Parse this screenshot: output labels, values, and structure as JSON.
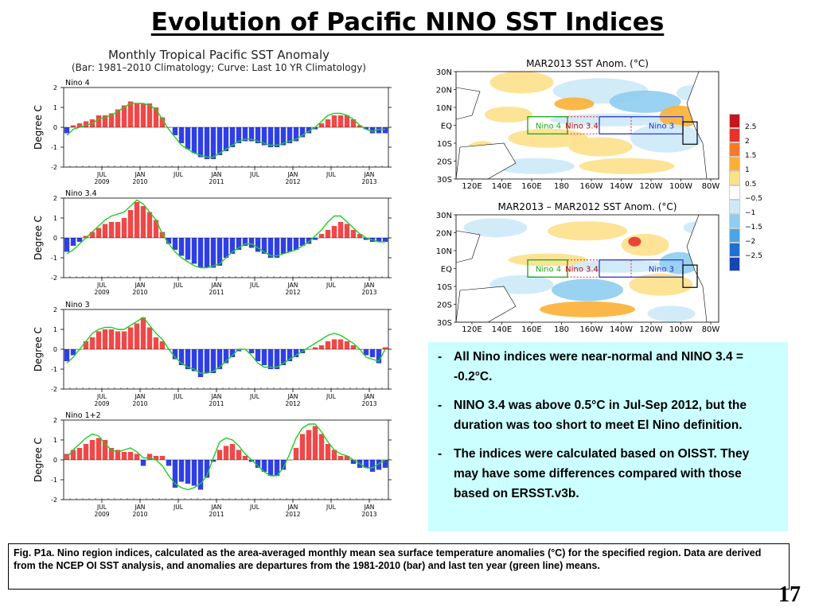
{
  "title": "Evolution of Pacific NINO SST Indices",
  "left_header": {
    "line1": "Monthly Tropical Pacific SST Anomaly",
    "line2": "(Bar: 1981–2010 Climatology; Curve: Last 10 YR Climatology)"
  },
  "colors": {
    "positive_bar": "#f04848",
    "negative_bar": "#2f3fe6",
    "curve": "#22cc22"
  },
  "chart_data": [
    {
      "type": "bar",
      "title": "Nino 4",
      "ylabel": "Degree C",
      "ylim": [
        -2,
        2
      ],
      "yticks": [
        2,
        1,
        0,
        -1,
        -2
      ],
      "xtick_labels": [
        [
          "JUL",
          "2009"
        ],
        [
          "JAN",
          "2010"
        ],
        [
          "JUL",
          ""
        ],
        [
          "JAN",
          "2011"
        ],
        [
          "JUL",
          ""
        ],
        [
          "JAN",
          "2012"
        ],
        [
          "JUL",
          ""
        ],
        [
          "JAN",
          "2013"
        ]
      ],
      "months_start": "2009-01",
      "bars": [
        -0.3,
        0.1,
        0.2,
        0.3,
        0.4,
        0.6,
        0.6,
        0.7,
        0.9,
        1.1,
        1.3,
        1.2,
        1.2,
        1.2,
        1.0,
        0.5,
        0.0,
        -0.4,
        -0.8,
        -1.1,
        -1.3,
        -1.5,
        -1.6,
        -1.6,
        -1.4,
        -1.2,
        -1.0,
        -0.8,
        -0.7,
        -0.7,
        -0.8,
        -0.9,
        -1.0,
        -1.0,
        -0.9,
        -0.8,
        -0.7,
        -0.5,
        -0.3,
        -0.1,
        0.2,
        0.4,
        0.6,
        0.6,
        0.6,
        0.4,
        0.1,
        -0.1,
        -0.3,
        -0.3,
        -0.3
      ],
      "curve": [
        -0.4,
        -0.1,
        0.0,
        0.1,
        0.2,
        0.4,
        0.5,
        0.6,
        0.8,
        1.0,
        1.2,
        1.2,
        1.2,
        1.1,
        0.9,
        0.4,
        -0.1,
        -0.5,
        -0.9,
        -1.1,
        -1.3,
        -1.4,
        -1.5,
        -1.5,
        -1.3,
        -1.1,
        -0.9,
        -0.7,
        -0.6,
        -0.6,
        -0.7,
        -0.8,
        -0.9,
        -0.9,
        -0.8,
        -0.7,
        -0.6,
        -0.4,
        -0.2,
        0.0,
        0.3,
        0.6,
        0.7,
        0.7,
        0.6,
        0.4,
        0.1,
        -0.1,
        -0.2,
        -0.1,
        -0.1
      ]
    },
    {
      "type": "bar",
      "title": "Nino 3.4",
      "ylabel": "Degree C",
      "ylim": [
        -2,
        2
      ],
      "yticks": [
        2,
        1,
        0,
        -1,
        -2
      ],
      "xtick_labels": [
        [
          "JUL",
          "2009"
        ],
        [
          "JAN",
          "2010"
        ],
        [
          "JUL",
          ""
        ],
        [
          "JAN",
          "2011"
        ],
        [
          "JUL",
          ""
        ],
        [
          "JAN",
          "2012"
        ],
        [
          "JUL",
          ""
        ],
        [
          "JAN",
          "2013"
        ]
      ],
      "months_start": "2009-01",
      "bars": [
        -0.7,
        -0.4,
        -0.2,
        0.1,
        0.3,
        0.5,
        0.7,
        0.8,
        0.8,
        1.0,
        1.4,
        1.8,
        1.6,
        1.3,
        0.9,
        0.3,
        -0.3,
        -0.6,
        -0.9,
        -1.1,
        -1.3,
        -1.5,
        -1.5,
        -1.5,
        -1.4,
        -1.0,
        -0.8,
        -0.6,
        -0.4,
        -0.5,
        -0.7,
        -0.8,
        -1.0,
        -1.0,
        -0.8,
        -0.7,
        -0.6,
        -0.4,
        -0.3,
        -0.1,
        0.2,
        0.4,
        0.6,
        0.8,
        0.7,
        0.4,
        0.2,
        -0.1,
        -0.2,
        -0.2,
        -0.2
      ],
      "curve": [
        -0.8,
        -0.6,
        -0.3,
        0.0,
        0.3,
        0.6,
        0.9,
        1.1,
        1.2,
        1.3,
        1.6,
        1.9,
        1.7,
        1.3,
        0.9,
        0.2,
        -0.3,
        -0.7,
        -1.0,
        -1.2,
        -1.4,
        -1.5,
        -1.5,
        -1.4,
        -1.3,
        -1.0,
        -0.7,
        -0.5,
        -0.3,
        -0.3,
        -0.5,
        -0.7,
        -0.9,
        -0.9,
        -0.8,
        -0.7,
        -0.6,
        -0.4,
        -0.2,
        0.1,
        0.4,
        0.8,
        1.1,
        1.1,
        0.8,
        0.5,
        0.2,
        0.0,
        -0.1,
        -0.2,
        -0.2
      ]
    },
    {
      "type": "bar",
      "title": "Nino 3",
      "ylabel": "Degree C",
      "ylim": [
        -2,
        2
      ],
      "yticks": [
        2,
        1,
        0,
        -1,
        -2
      ],
      "xtick_labels": [
        [
          "JUL",
          "2009"
        ],
        [
          "JAN",
          "2010"
        ],
        [
          "JUL",
          ""
        ],
        [
          "JAN",
          "2011"
        ],
        [
          "JUL",
          ""
        ],
        [
          "JAN",
          "2012"
        ],
        [
          "JUL",
          ""
        ],
        [
          "JAN",
          "2013"
        ]
      ],
      "months_start": "2009-01",
      "bars": [
        -0.6,
        -0.3,
        0.0,
        0.4,
        0.6,
        0.9,
        1.0,
        1.0,
        0.9,
        0.9,
        1.1,
        1.3,
        1.6,
        1.1,
        0.6,
        0.4,
        0.0,
        -0.5,
        -0.8,
        -1.0,
        -1.1,
        -1.4,
        -1.2,
        -1.2,
        -1.0,
        -0.7,
        -0.4,
        -0.1,
        0.0,
        -0.2,
        -0.6,
        -0.8,
        -1.0,
        -1.0,
        -0.8,
        -0.6,
        -0.4,
        -0.2,
        0.0,
        0.1,
        0.2,
        0.4,
        0.5,
        0.5,
        0.4,
        0.2,
        0.0,
        -0.3,
        -0.4,
        -0.7,
        0.1
      ],
      "curve": [
        -0.7,
        -0.4,
        0.0,
        0.4,
        0.8,
        1.0,
        1.1,
        1.1,
        1.0,
        1.0,
        1.2,
        1.4,
        1.6,
        1.2,
        0.8,
        0.5,
        0.0,
        -0.4,
        -0.7,
        -0.9,
        -1.0,
        -1.2,
        -1.2,
        -1.1,
        -0.9,
        -0.6,
        -0.3,
        0.0,
        0.0,
        -0.3,
        -0.7,
        -0.9,
        -0.9,
        -0.9,
        -0.7,
        -0.5,
        -0.3,
        -0.1,
        0.1,
        0.3,
        0.5,
        0.7,
        0.8,
        0.7,
        0.5,
        0.3,
        0.0,
        -0.4,
        -0.5,
        -0.6,
        0.0
      ]
    },
    {
      "type": "bar",
      "title": "Nino 1+2",
      "ylabel": "Degree C",
      "ylim": [
        -2,
        2
      ],
      "yticks": [
        2,
        1,
        0,
        -1,
        -2
      ],
      "xtick_labels": [
        [
          "JUL",
          "2009"
        ],
        [
          "JAN",
          "2010"
        ],
        [
          "JUL",
          ""
        ],
        [
          "JAN",
          "2011"
        ],
        [
          "JUL",
          ""
        ],
        [
          "JAN",
          "2012"
        ],
        [
          "JUL",
          ""
        ],
        [
          "JAN",
          "2013"
        ]
      ],
      "months_start": "2009-01",
      "bars": [
        0.3,
        0.5,
        0.6,
        0.8,
        1.0,
        1.1,
        1.0,
        0.6,
        0.5,
        0.4,
        0.4,
        0.3,
        -0.3,
        0.3,
        0.2,
        0.2,
        -0.3,
        -1.4,
        -1.1,
        -1.2,
        -1.3,
        -1.5,
        -0.9,
        -0.1,
        0.5,
        0.7,
        0.8,
        0.5,
        0.2,
        -0.1,
        -0.4,
        -0.6,
        -0.8,
        -0.8,
        -0.5,
        0.0,
        0.6,
        1.3,
        1.5,
        1.7,
        1.3,
        0.8,
        0.5,
        0.2,
        0.2,
        -0.2,
        -0.4,
        -0.4,
        -0.6,
        -0.5,
        -0.4
      ],
      "curve": [
        0.1,
        0.5,
        0.8,
        1.1,
        1.3,
        1.2,
        0.8,
        0.5,
        0.4,
        0.5,
        0.6,
        0.4,
        0.1,
        0.1,
        0.0,
        -0.3,
        -0.8,
        -1.2,
        -1.4,
        -1.5,
        -1.4,
        -1.2,
        -0.8,
        0.1,
        0.9,
        1.1,
        1.0,
        0.7,
        0.3,
        0.0,
        -0.3,
        -0.6,
        -0.8,
        -0.8,
        -0.4,
        0.3,
        1.1,
        1.6,
        1.8,
        1.8,
        1.4,
        0.9,
        0.5,
        0.3,
        0.2,
        0.0,
        -0.2,
        -0.4,
        -0.4,
        -0.2,
        0.0
      ]
    }
  ],
  "maps": [
    {
      "title": "MAR2013 SST Anom. (°C)",
      "lat_labels": [
        "30N",
        "20N",
        "10N",
        "EQ",
        "10S",
        "20S",
        "30S"
      ],
      "lon_labels": [
        "120E",
        "140E",
        "160E",
        "180",
        "160W",
        "140W",
        "120W",
        "100W",
        "80W"
      ],
      "box_labels": [
        "Nino 4",
        "Nino 3.4",
        "Nino 3"
      ]
    },
    {
      "title": "MAR2013 – MAR2012 SST Anom. (°C)",
      "lat_labels": [
        "30N",
        "20N",
        "10N",
        "EQ",
        "10S",
        "20S",
        "30S"
      ],
      "lon_labels": [
        "120E",
        "140E",
        "160E",
        "180",
        "160W",
        "140W",
        "120W",
        "100W",
        "80W"
      ],
      "box_labels": [
        "Nino 4",
        "Nino 3.4",
        "Nino 3"
      ]
    }
  ],
  "colorbar": {
    "labels": [
      "2.5",
      "2",
      "1.5",
      "1",
      "0.5",
      "−0.5",
      "−1",
      "−1.5",
      "−2",
      "−2.5"
    ],
    "colors": [
      "#c8141e",
      "#e8322a",
      "#f57a28",
      "#fbb035",
      "#fde08a",
      "#ffffff",
      "#cde9f7",
      "#8fcdf0",
      "#4aa7e6",
      "#1e6fd0",
      "#1446b4"
    ]
  },
  "bullets": [
    "All Nino indices were near-normal and NINO 3.4 = -0.2°C.",
    "NINO 3.4 was above 0.5°C in Jul-Sep 2012, but the duration was  too short to meet El Nino definition.",
    "The indices were calculated based on OISST. They may have some differences compared with those based on ERSST.v3b."
  ],
  "caption": "Fig. P1a. Nino region indices, calculated as the area-averaged monthly mean sea surface temperature anomalies (°C) for the specified region. Data are derived from the NCEP OI SST analysis, and anomalies are departures from the 1981-2010 (bar) and last ten year (green line) means.",
  "page_number": "17"
}
